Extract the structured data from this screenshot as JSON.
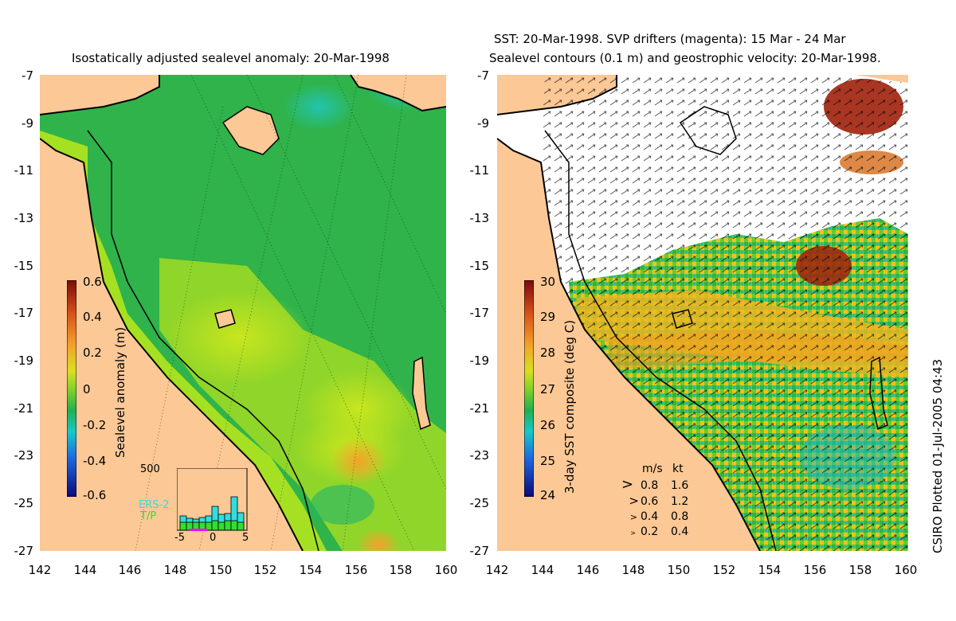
{
  "left_panel": {
    "title": "Isostatically adjusted sealevel anomaly: 20-Mar-1998",
    "colorbar": {
      "label": "Sealevel anomaly (m)",
      "ticks": [
        "0.6",
        "0.4",
        "0.2",
        "0",
        "-0.2",
        "-0.4",
        "-0.6"
      ]
    },
    "histogram": {
      "ymax_label": "500",
      "legend_ers": "ERS-2",
      "legend_tp": "T/P",
      "x_ticks": [
        "-5",
        "0",
        "5"
      ],
      "ers_color": "#33dddd",
      "tp_color": "#33dd33"
    }
  },
  "right_panel": {
    "title_line1": "SST: 20-Mar-1998. SVP drifters (magenta): 15 Mar - 24 Mar",
    "title_line2": "Sealevel contours (0.1 m) and geostrophic velocity: 20-Mar-1998.",
    "colorbar": {
      "label": "3-day SST composite (deg C)",
      "ticks": [
        "30",
        "29",
        "28",
        "27",
        "26",
        "25",
        "24"
      ]
    },
    "velocity_legend": {
      "header_ms": "m/s",
      "header_kt": "kt",
      "rows": [
        {
          "ms": "0.8",
          "kt": "1.6"
        },
        {
          "ms": "0.6",
          "kt": "1.2"
        },
        {
          "ms": "0.4",
          "kt": "0.8"
        },
        {
          "ms": "0.2",
          "kt": "0.4"
        }
      ]
    }
  },
  "axes": {
    "y_ticks": [
      "-7",
      "-9",
      "-11",
      "-13",
      "-15",
      "-17",
      "-19",
      "-21",
      "-23",
      "-25",
      "-27"
    ],
    "x_ticks": [
      "142",
      "144",
      "146",
      "148",
      "150",
      "152",
      "154",
      "156",
      "158",
      "160"
    ]
  },
  "credit": "CSIRO Plotted 01-Jul-2005 04:43",
  "colors": {
    "land": "#fbc896",
    "ocean_green": "#2fb34a",
    "ocean_lime": "#a6e022",
    "anomaly_high": "#f0a020",
    "sst_warm": "#f4b520",
    "sst_hot": "#a0200a",
    "cloud": "#ffffff"
  }
}
